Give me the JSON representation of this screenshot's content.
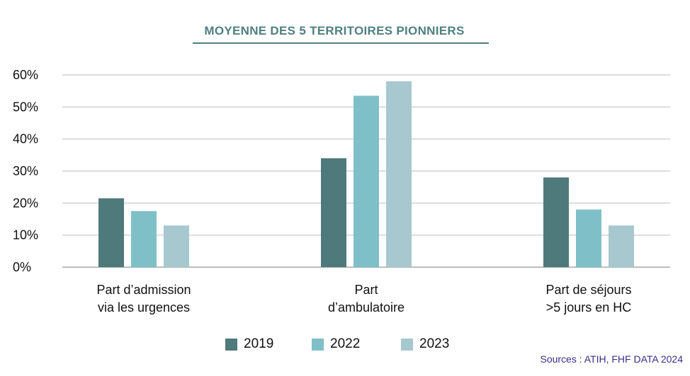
{
  "chart_data": {
    "type": "bar",
    "title": "MOYENNE DES 5 TERRITOIRES PIONNIERS",
    "categories": [
      [
        "Part d’admission",
        "via les urgences"
      ],
      [
        "Part",
        "d’ambulatoire"
      ],
      [
        "Part de séjours",
        ">5 jours en HC"
      ]
    ],
    "series": [
      {
        "name": "2019",
        "color": "#4f7a7b",
        "values": [
          21.5,
          34,
          28
        ]
      },
      {
        "name": "2022",
        "color": "#7fc0c8",
        "values": [
          17.5,
          53.5,
          18
        ]
      },
      {
        "name": "2023",
        "color": "#a7c8cf",
        "values": [
          13,
          58,
          13
        ]
      }
    ],
    "ylim": [
      0,
      60
    ],
    "yticks": [
      0,
      10,
      20,
      30,
      40,
      50,
      60
    ],
    "ytick_labels": [
      "0%",
      "10%",
      "20%",
      "30%",
      "40%",
      "50%",
      "60%"
    ],
    "grid": true,
    "legend_position": "bottom"
  },
  "source": "Sources : ATIH, FHF DATA 2024"
}
